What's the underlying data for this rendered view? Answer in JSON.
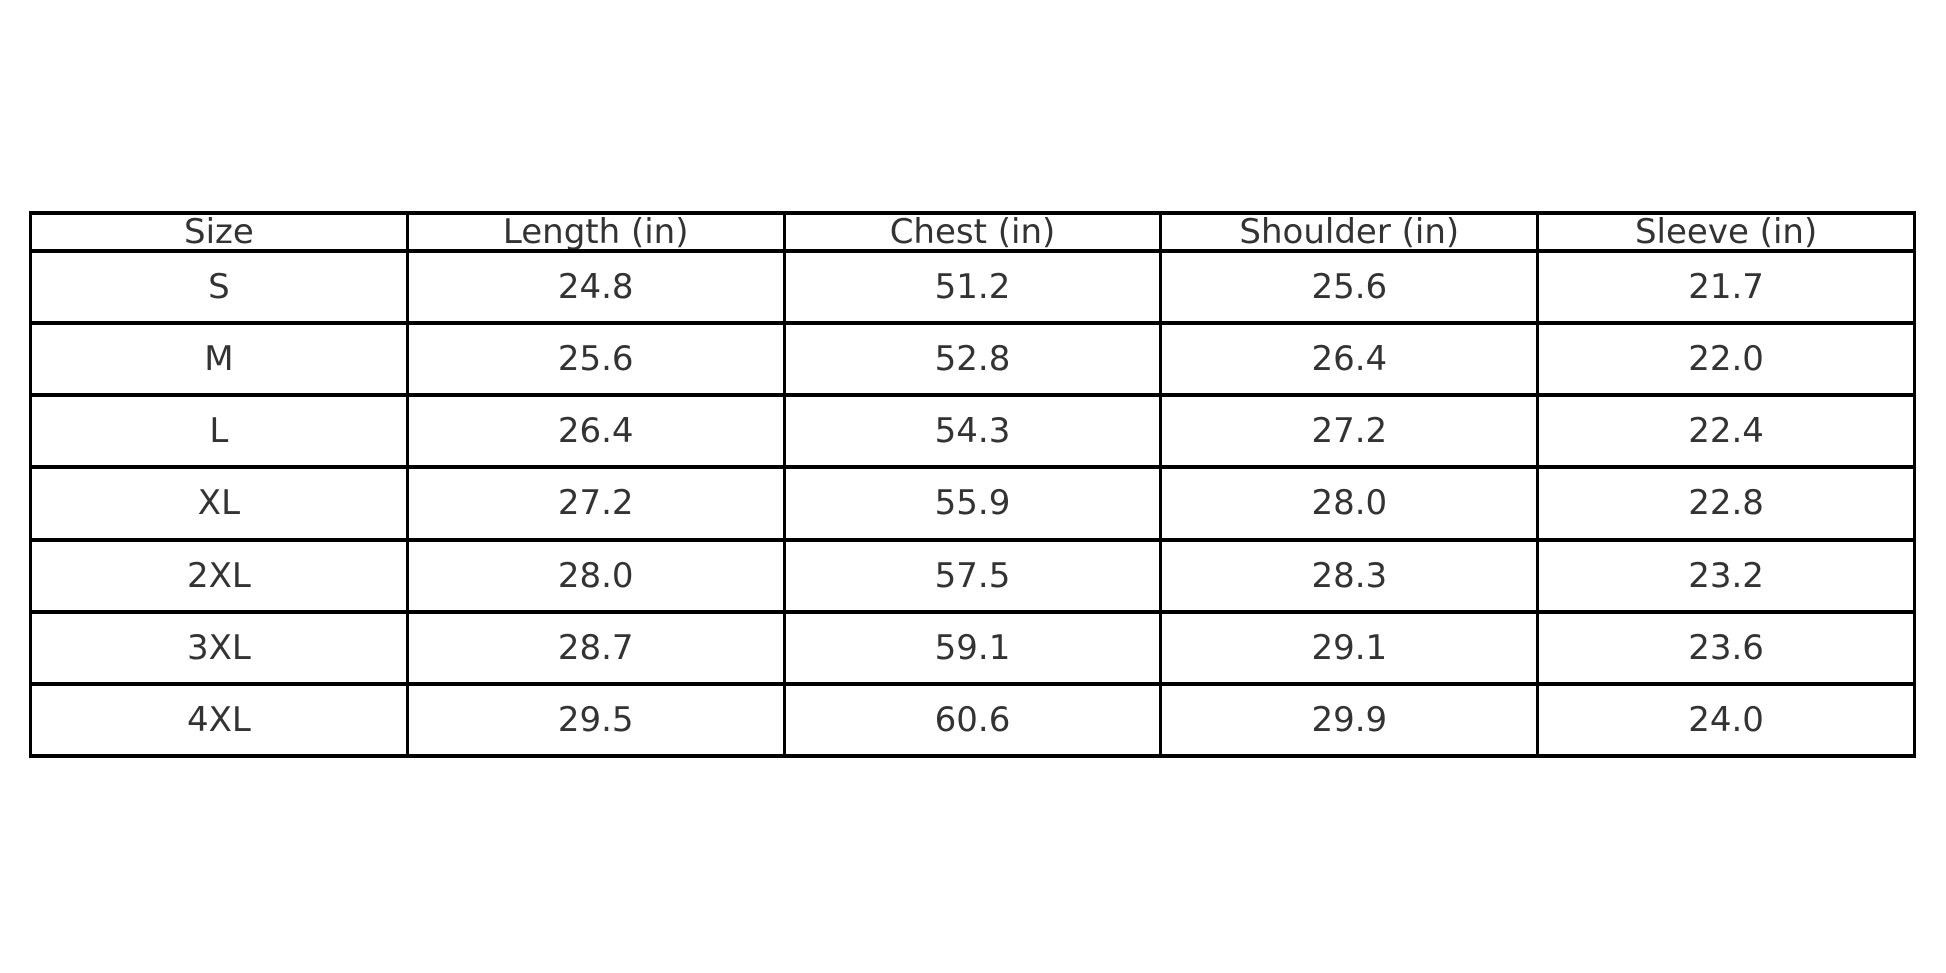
{
  "chart_data": {
    "type": "table",
    "title": "",
    "columns": [
      "Size",
      "Length (in)",
      "Chest (in)",
      "Shoulder (in)",
      "Sleeve (in)"
    ],
    "rows": [
      [
        "S",
        "24.8",
        "51.2",
        "25.6",
        "21.7"
      ],
      [
        "M",
        "25.6",
        "52.8",
        "26.4",
        "22.0"
      ],
      [
        "L",
        "26.4",
        "54.3",
        "27.2",
        "22.4"
      ],
      [
        "XL",
        "27.2",
        "55.9",
        "28.0",
        "22.8"
      ],
      [
        "2XL",
        "28.0",
        "57.5",
        "28.3",
        "23.2"
      ],
      [
        "3XL",
        "28.7",
        "59.1",
        "29.1",
        "23.6"
      ],
      [
        "4XL",
        "29.5",
        "60.6",
        "29.9",
        "24.0"
      ]
    ],
    "layout": {
      "grid": true,
      "header_position": "top",
      "num_data_rows": 7,
      "num_columns": 5
    }
  },
  "colors": {
    "background": "#ffffff",
    "border": "#000000",
    "text": "#333333"
  }
}
